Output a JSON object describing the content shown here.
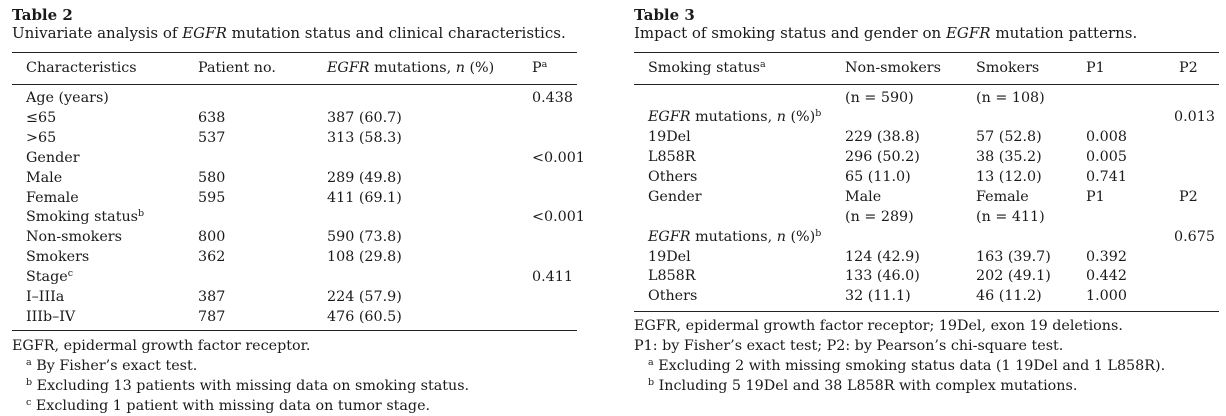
{
  "table2": {
    "label": "Table 2",
    "caption_pre": "Univariate analysis of ",
    "caption_em": "EGFR",
    "caption_post": " mutation status and clinical characteristics.",
    "headers": {
      "characteristics": "Characteristics",
      "patient_no": "Patient no.",
      "mut_em": "EGFR",
      "mut_rest": " mutations, ",
      "mut_n": "n",
      "mut_pct": " (%)",
      "p": "P",
      "p_sup": "a"
    },
    "rows": [
      {
        "label": "Age (years)",
        "sup": "",
        "n": "",
        "mut": "",
        "p": "0.438"
      },
      {
        "label": "≤65",
        "sup": "",
        "n": "638",
        "mut": "387 (60.7)",
        "p": ""
      },
      {
        "label": ">65",
        "sup": "",
        "n": "537",
        "mut": "313 (58.3)",
        "p": ""
      },
      {
        "label": "Gender",
        "sup": "",
        "n": "",
        "mut": "",
        "p": "<0.001"
      },
      {
        "label": "Male",
        "sup": "",
        "n": "580",
        "mut": "289 (49.8)",
        "p": ""
      },
      {
        "label": "Female",
        "sup": "",
        "n": "595",
        "mut": "411 (69.1)",
        "p": ""
      },
      {
        "label": "Smoking status",
        "sup": "b",
        "n": "",
        "mut": "",
        "p": "<0.001"
      },
      {
        "label": "Non-smokers",
        "sup": "",
        "n": "800",
        "mut": "590 (73.8)",
        "p": ""
      },
      {
        "label": "Smokers",
        "sup": "",
        "n": "362",
        "mut": "108 (29.8)",
        "p": ""
      },
      {
        "label": "Stage",
        "sup": "c",
        "n": "",
        "mut": "",
        "p": "0.411"
      },
      {
        "label": "I–IIIa",
        "sup": "",
        "n": "387",
        "mut": "224 (57.9)",
        "p": ""
      },
      {
        "label": "IIIb–IV",
        "sup": "",
        "n": "787",
        "mut": "476 (60.5)",
        "p": ""
      }
    ],
    "footnotes": [
      {
        "sup": "",
        "text": "EGFR, epidermal growth factor receptor."
      },
      {
        "sup": "a",
        "text": "By Fisher’s exact test."
      },
      {
        "sup": "b",
        "text": "Excluding 13 patients with missing data on smoking status."
      },
      {
        "sup": "c",
        "text": "Excluding 1 patient with missing data on tumor stage."
      }
    ]
  },
  "table3": {
    "label": "Table 3",
    "caption_pre": "Impact of smoking status and gender on ",
    "caption_em": "EGFR",
    "caption_post": " mutation patterns.",
    "headers": {
      "smoking": "Smoking status",
      "smoking_sup": "a",
      "nonsmokers": "Non-smokers",
      "smokers": "Smokers",
      "p1": "P1",
      "p2": "P2"
    },
    "n_nonsmokers": "(n = 590)",
    "n_smokers": "(n = 108)",
    "section1": {
      "label_em": "EGFR",
      "label_rest": " mutations, ",
      "label_n": "n",
      "label_pct": " (%)",
      "sup": "b",
      "p2": "0.013",
      "rows": [
        {
          "label": "19Del",
          "a": "229 (38.8)",
          "b": "57 (52.8)",
          "p1": "0.008"
        },
        {
          "label": "L858R",
          "a": "296 (50.2)",
          "b": "38 (35.2)",
          "p1": "0.005"
        },
        {
          "label": "Others",
          "a": "65 (11.0)",
          "b": "13 (12.0)",
          "p1": "0.741"
        }
      ]
    },
    "gender_row": {
      "label": "Gender",
      "a": "Male",
      "b": "Female",
      "p1": "P1",
      "p2": "P2"
    },
    "n_male": "(n = 289)",
    "n_female": "(n = 411)",
    "section2": {
      "label_em": "EGFR",
      "label_rest": " mutations, ",
      "label_n": "n",
      "label_pct": " (%)",
      "sup": "b",
      "p2": "0.675",
      "rows": [
        {
          "label": "19Del",
          "a": "124 (42.9)",
          "b": "163 (39.7)",
          "p1": "0.392"
        },
        {
          "label": "L858R",
          "a": "133 (46.0)",
          "b": "202 (49.1)",
          "p1": "0.442"
        },
        {
          "label": "Others",
          "a": "32 (11.1)",
          "b": "46 (11.2)",
          "p1": "1.000"
        }
      ]
    },
    "footnotes": [
      {
        "sup": "",
        "text": "EGFR, epidermal growth factor receptor; 19Del, exon 19 deletions."
      },
      {
        "sup": "",
        "text": "P1: by Fisher’s exact test; P2: by Pearson’s chi-square test."
      },
      {
        "sup": "a",
        "text": "Excluding 2 with missing smoking status data (1 19Del and 1 L858R)."
      },
      {
        "sup": "b",
        "text": "Including 5 19Del and 38 L858R with complex mutations."
      }
    ]
  }
}
